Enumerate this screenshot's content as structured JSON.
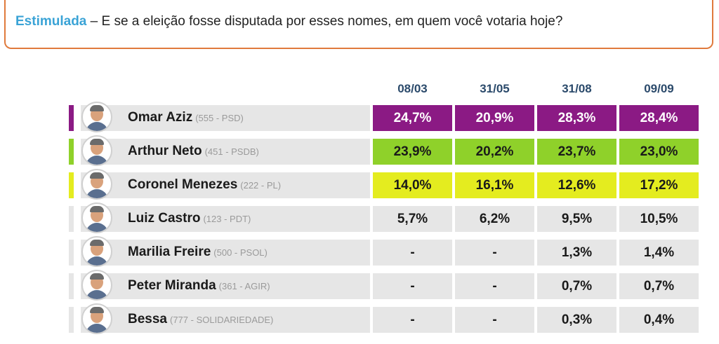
{
  "question": {
    "label": "Estimulada",
    "text": " – E se a eleição fosse disputada por esses nomes, em quem você votaria hoje?"
  },
  "colors": {
    "accent_border": "#e07a3c",
    "label": "#3aa3d6",
    "default_cell": "#e6e6e6"
  },
  "chart_data": {
    "type": "table",
    "columns": [
      "08/03",
      "31/05",
      "31/08",
      "09/09"
    ],
    "rows": [
      {
        "name": "Omar Aziz",
        "party": "(555 - PSD)",
        "color": "#8b1a84",
        "text_color": "#ffffff",
        "highlight": true,
        "values": [
          "24,7%",
          "20,9%",
          "28,3%",
          "28,4%"
        ],
        "avatar_icon": "person-photo-icon"
      },
      {
        "name": "Arthur Neto",
        "party": "(451 - PSDB)",
        "color": "#8fd12a",
        "text_color": "#1a1a1a",
        "highlight": true,
        "values": [
          "23,9%",
          "20,2%",
          "23,7%",
          "23,0%"
        ],
        "avatar_icon": "person-photo-icon"
      },
      {
        "name": "Coronel Menezes",
        "party": "(222 - PL)",
        "color": "#e4ec1f",
        "text_color": "#1a1a1a",
        "highlight": true,
        "values": [
          "14,0%",
          "16,1%",
          "12,6%",
          "17,2%"
        ],
        "avatar_icon": "person-photo-icon"
      },
      {
        "name": "Luiz Castro",
        "party": "(123 - PDT)",
        "color": "#e6e6e6",
        "text_color": "#1a1a1a",
        "highlight": false,
        "values": [
          "5,7%",
          "6,2%",
          "9,5%",
          "10,5%"
        ],
        "avatar_icon": "person-photo-icon"
      },
      {
        "name": "Marilia Freire",
        "party": "(500 - PSOL)",
        "color": "#e6e6e6",
        "text_color": "#1a1a1a",
        "highlight": false,
        "values": [
          "-",
          "-",
          "1,3%",
          "1,4%"
        ],
        "avatar_icon": "person-photo-icon"
      },
      {
        "name": "Peter Miranda",
        "party": "(361 - AGIR)",
        "color": "#e6e6e6",
        "text_color": "#1a1a1a",
        "highlight": false,
        "values": [
          "-",
          "-",
          "0,7%",
          "0,7%"
        ],
        "avatar_icon": "person-photo-icon"
      },
      {
        "name": "Bessa",
        "party": "(777 - SOLIDARIEDADE)",
        "color": "#e6e6e6",
        "text_color": "#1a1a1a",
        "highlight": false,
        "values": [
          "-",
          "-",
          "0,3%",
          "0,4%"
        ],
        "avatar_icon": "person-photo-icon"
      }
    ]
  }
}
